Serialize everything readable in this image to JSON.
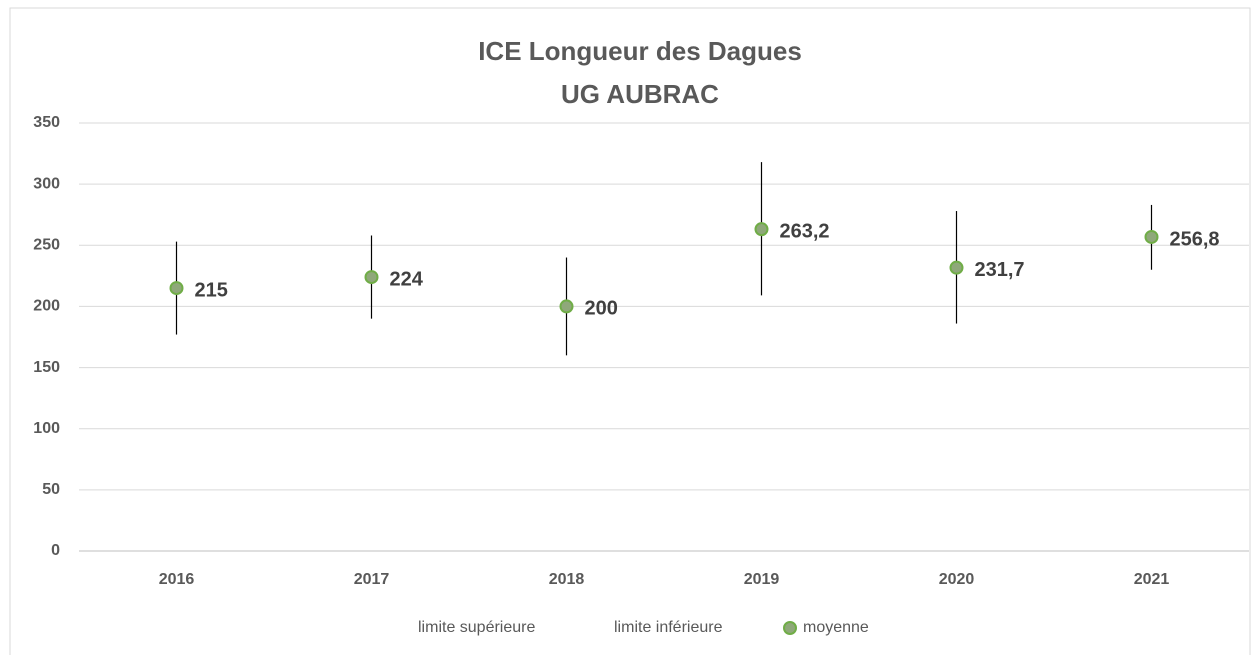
{
  "chart_data": {
    "type": "high-low",
    "title": "ICE Longueur des Dagues",
    "subtitle": "UG AUBRAC",
    "categories": [
      "2016",
      "2017",
      "2018",
      "2019",
      "2020",
      "2021"
    ],
    "series": [
      {
        "name": "limite supérieure",
        "values": [
          253,
          258,
          240,
          318,
          278,
          283
        ]
      },
      {
        "name": "limite inférieure",
        "values": [
          177,
          190,
          160,
          209,
          186,
          230
        ]
      },
      {
        "name": "moyenne",
        "color": "#70ad47",
        "values": [
          215,
          224,
          200,
          263.2,
          231.7,
          256.8
        ],
        "value_labels": [
          "215",
          "224",
          "200",
          "263,2",
          "231,7",
          "256,8"
        ]
      }
    ],
    "ylim": [
      0,
      350
    ],
    "yticks": [
      0,
      50,
      100,
      150,
      200,
      250,
      300,
      350
    ],
    "grid": true,
    "legend": "bottom"
  }
}
